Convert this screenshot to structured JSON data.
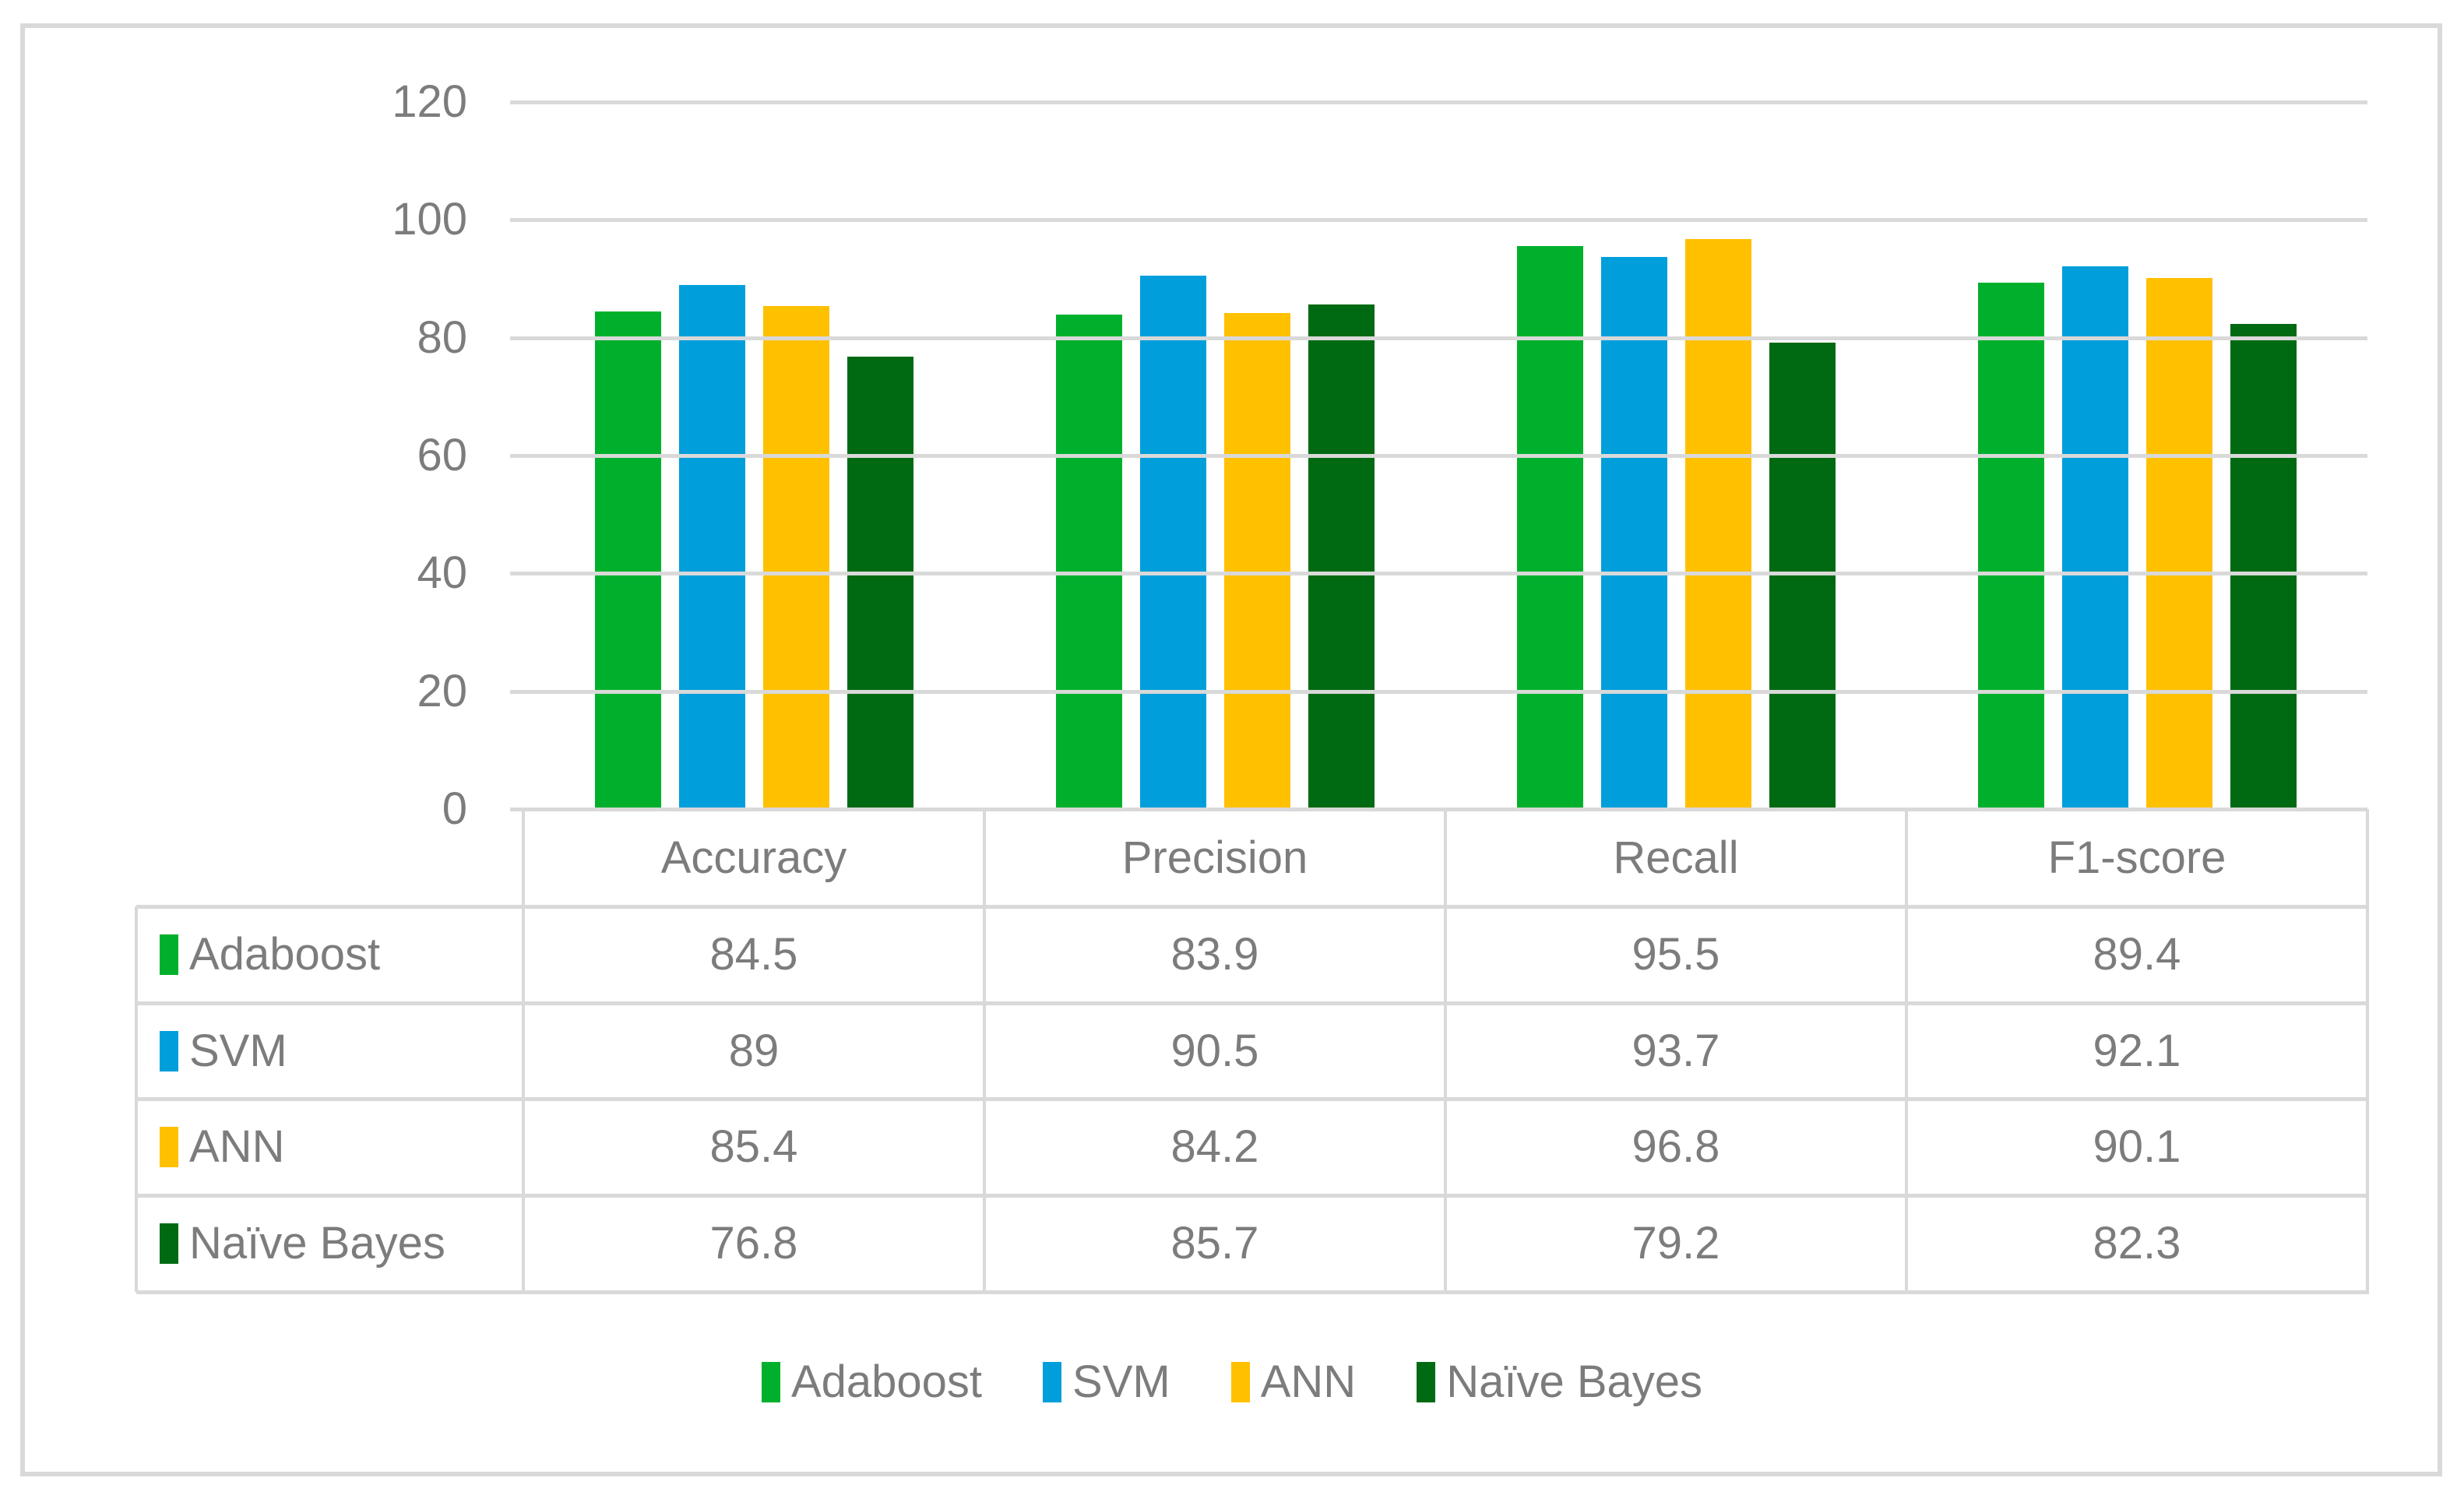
{
  "chart_data": {
    "type": "bar",
    "title": "",
    "xlabel": "",
    "ylabel": "",
    "categories": [
      "Accuracy",
      "Precision",
      "Recall",
      "F1-score"
    ],
    "series": [
      {
        "name": "Adaboost",
        "color": "#00B02C",
        "values": [
          84.5,
          83.9,
          95.5,
          89.4
        ]
      },
      {
        "name": "SVM",
        "color": "#009EDB",
        "values": [
          89,
          90.5,
          93.7,
          92.1
        ]
      },
      {
        "name": "ANN",
        "color": "#FFC000",
        "values": [
          85.4,
          84.2,
          96.8,
          90.1
        ]
      },
      {
        "name": "Naïve Bayes",
        "color": "#006A12",
        "values": [
          76.8,
          85.7,
          79.2,
          82.3
        ]
      }
    ],
    "ylim": [
      0,
      120
    ],
    "yticks": [
      0,
      20,
      40,
      60,
      80,
      100,
      120
    ],
    "ytick_labels": [
      "0",
      "20",
      "40",
      "60",
      "80",
      "100",
      "120"
    ],
    "grid": true,
    "legend_position": "bottom",
    "data_table_shown": true
  },
  "table": {
    "corner_label": "",
    "columns": [
      "Accuracy",
      "Precision",
      "Recall",
      "F1-score"
    ],
    "rows": [
      {
        "label": "Adaboost",
        "color": "#00B02C",
        "cells": [
          "84.5",
          "83.9",
          "95.5",
          "89.4"
        ]
      },
      {
        "label": "SVM",
        "color": "#009EDB",
        "cells": [
          "89",
          "90.5",
          "93.7",
          "92.1"
        ]
      },
      {
        "label": "ANN",
        "color": "#FFC000",
        "cells": [
          "85.4",
          "84.2",
          "96.8",
          "90.1"
        ]
      },
      {
        "label": "Naïve Bayes",
        "color": "#006A12",
        "cells": [
          "76.8",
          "85.7",
          "79.2",
          "82.3"
        ]
      }
    ]
  },
  "legend": {
    "items": [
      {
        "label": "Adaboost",
        "color": "#00B02C"
      },
      {
        "label": "SVM",
        "color": "#009EDB"
      },
      {
        "label": "ANN",
        "color": "#FFC000"
      },
      {
        "label": "Naïve Bayes",
        "color": "#006A12"
      }
    ]
  },
  "colors": {
    "text": "#7C7C7C",
    "gridline": "#D9D9D9",
    "table_border": "#D9D9D9",
    "frame_border": "#D9D9D9",
    "background": "#FFFFFF"
  }
}
